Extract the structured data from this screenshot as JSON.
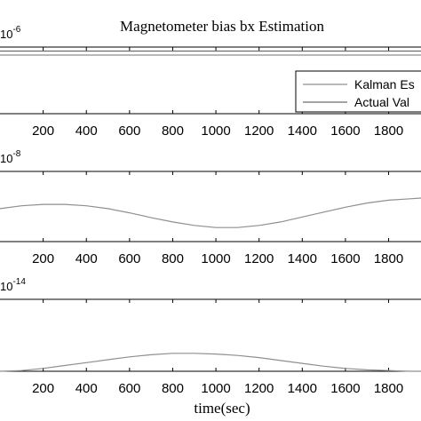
{
  "title": "Magnetometer bias bx Estimation",
  "xlabel": "time(sec)",
  "chart_data": [
    {
      "type": "line",
      "exponent_label": "10",
      "exponent_sup": "-6",
      "xticks": [
        200,
        400,
        600,
        800,
        1000,
        1200,
        1400,
        1600,
        1800
      ],
      "xlim": [
        0,
        1950
      ],
      "ylim": [
        0,
        1
      ],
      "legend_position": "bottom-right",
      "series": [
        {
          "name": "Kalman Es",
          "x": [
            0,
            1950
          ],
          "y": [
            0.88,
            0.88
          ]
        },
        {
          "name": "Actual Val",
          "x": [
            0,
            1950
          ],
          "y": [
            0.94,
            0.94
          ]
        }
      ]
    },
    {
      "type": "line",
      "exponent_label": "10",
      "exponent_sup": "-8",
      "xticks": [
        200,
        400,
        600,
        800,
        1000,
        1200,
        1400,
        1600,
        1800
      ],
      "xlim": [
        0,
        1950
      ],
      "ylim": [
        0,
        1
      ],
      "series": [
        {
          "x": [
            0,
            100,
            200,
            300,
            400,
            500,
            600,
            700,
            800,
            900,
            1000,
            1100,
            1200,
            1300,
            1400,
            1500,
            1600,
            1700,
            1800,
            1900,
            1950
          ],
          "y": [
            0.47,
            0.51,
            0.53,
            0.53,
            0.51,
            0.47,
            0.41,
            0.34,
            0.28,
            0.23,
            0.2,
            0.2,
            0.23,
            0.28,
            0.35,
            0.42,
            0.49,
            0.55,
            0.59,
            0.61,
            0.62
          ]
        }
      ]
    },
    {
      "type": "line",
      "exponent_label": "10",
      "exponent_sup": "-14",
      "xticks": [
        200,
        400,
        600,
        800,
        1000,
        1200,
        1400,
        1600,
        1800
      ],
      "xlim": [
        0,
        1950
      ],
      "ylim": [
        0,
        1
      ],
      "series": [
        {
          "x": [
            0,
            100,
            200,
            300,
            400,
            500,
            600,
            700,
            800,
            900,
            1000,
            1100,
            1200,
            1300,
            1400,
            1500,
            1600,
            1700,
            1800,
            1900,
            1950
          ],
          "y": [
            0.0,
            0.01,
            0.04,
            0.08,
            0.12,
            0.16,
            0.2,
            0.23,
            0.25,
            0.25,
            0.24,
            0.22,
            0.19,
            0.15,
            0.11,
            0.07,
            0.04,
            0.02,
            0.01,
            0.0,
            0.0
          ]
        }
      ]
    }
  ]
}
